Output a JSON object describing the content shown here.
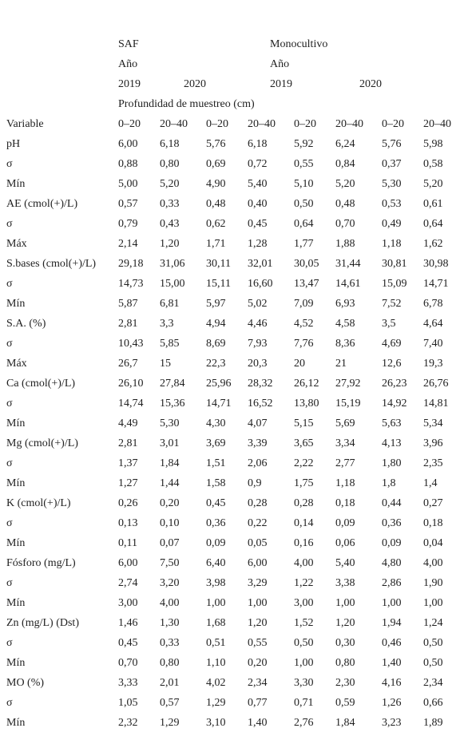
{
  "header": {
    "groups": [
      "SAF",
      "Monocultivo"
    ],
    "year_labels": [
      "Año",
      "Año"
    ],
    "years": [
      "2019",
      "2020",
      "2019",
      "2020"
    ],
    "depth_title": "Profundidad de muestreo (cm)",
    "variable_label": "Variable",
    "depths": [
      "0–20",
      "20–40",
      "0–20",
      "20–40",
      "0–20",
      "20–40",
      "0–20",
      "20–40"
    ]
  },
  "rows": [
    {
      "label": "pH",
      "values": [
        "6,00",
        "6,18",
        "5,76",
        "6,18",
        "5,92",
        "6,24",
        "5,76",
        "5,98"
      ]
    },
    {
      "label": "σ",
      "values": [
        "0,88",
        "0,80",
        "0,69",
        "0,72",
        "0,55",
        "0,84",
        "0,37",
        "0,58"
      ]
    },
    {
      "label": "Mín",
      "values": [
        "5,00",
        "5,20",
        "4,90",
        "5,40",
        "5,10",
        "5,20",
        "5,30",
        "5,20"
      ]
    },
    {
      "label": "AE (cmol(+)/L)",
      "values": [
        "0,57",
        "0,33",
        "0,48",
        "0,40",
        "0,50",
        "0,48",
        "0,53",
        "0,61"
      ]
    },
    {
      "label": "σ",
      "values": [
        "0,79",
        "0,43",
        "0,62",
        "0,45",
        "0,64",
        "0,70",
        "0,49",
        "0,64"
      ]
    },
    {
      "label": "Máx",
      "values": [
        "2,14",
        "1,20",
        "1,71",
        "1,28",
        "1,77",
        "1,88",
        "1,18",
        "1,62"
      ]
    },
    {
      "label": "S.bases (cmol(+)/L)",
      "values": [
        "29,18",
        "31,06",
        "30,11",
        "32,01",
        "30,05",
        "31,44",
        "30,81",
        "30,98"
      ]
    },
    {
      "label": "σ",
      "values": [
        "14,73",
        "15,00",
        "15,11",
        "16,60",
        "13,47",
        "14,61",
        "15,09",
        "14,71"
      ]
    },
    {
      "label": "Mín",
      "values": [
        "5,87",
        "6,81",
        "5,97",
        "5,02",
        "7,09",
        "6,93",
        "7,52",
        "6,78"
      ]
    },
    {
      "label": "S.A. (%)",
      "values": [
        "2,81",
        "3,3",
        "4,94",
        "4,46",
        "4,52",
        "4,58",
        "3,5",
        "4,64"
      ]
    },
    {
      "label": "σ",
      "values": [
        "10,43",
        "5,85",
        "8,69",
        "7,93",
        "7,76",
        "8,36",
        "4,69",
        "7,40"
      ]
    },
    {
      "label": "Máx",
      "values": [
        "26,7",
        "15",
        "22,3",
        "20,3",
        "20",
        "21",
        "12,6",
        "19,3"
      ]
    },
    {
      "label": "Ca (cmol(+)/L)",
      "values": [
        "26,10",
        "27,84",
        "25,96",
        "28,32",
        "26,12",
        "27,92",
        "26,23",
        "26,76"
      ]
    },
    {
      "label": "σ",
      "values": [
        "14,74",
        "15,36",
        "14,71",
        "16,52",
        "13,80",
        "15,19",
        "14,92",
        "14,81"
      ]
    },
    {
      "label": "Mín",
      "values": [
        "4,49",
        "5,30",
        "4,30",
        "4,07",
        "5,15",
        "5,69",
        "5,63",
        "5,34"
      ]
    },
    {
      "label": "Mg (cmol(+)/L)",
      "values": [
        "2,81",
        "3,01",
        "3,69",
        "3,39",
        "3,65",
        "3,34",
        "4,13",
        "3,96"
      ]
    },
    {
      "label": "σ",
      "values": [
        "1,37",
        "1,84",
        "1,51",
        "2,06",
        "2,22",
        "2,77",
        "1,80",
        "2,35"
      ]
    },
    {
      "label": "Mín",
      "values": [
        "1,27",
        "1,44",
        "1,58",
        "0,9",
        "1,75",
        "1,18",
        "1,8",
        "1,4"
      ]
    },
    {
      "label": "K (cmol(+)/L)",
      "values": [
        "0,26",
        "0,20",
        "0,45",
        "0,28",
        "0,28",
        "0,18",
        "0,44",
        "0,27"
      ]
    },
    {
      "label": "σ",
      "values": [
        "0,13",
        "0,10",
        "0,36",
        "0,22",
        "0,14",
        "0,09",
        "0,36",
        "0,18"
      ]
    },
    {
      "label": "Mín",
      "values": [
        "0,11",
        "0,07",
        "0,09",
        "0,05",
        "0,16",
        "0,06",
        "0,09",
        "0,04"
      ]
    },
    {
      "label": "Fósforo (mg/L)",
      "values": [
        "6,00",
        "7,50",
        "6,40",
        "6,00",
        "4,00",
        "5,40",
        "4,80",
        "4,00"
      ]
    },
    {
      "label": "σ",
      "values": [
        "2,74",
        "3,20",
        "3,98",
        "3,29",
        "1,22",
        "3,38",
        "2,86",
        "1,90"
      ]
    },
    {
      "label": "Mín",
      "values": [
        "3,00",
        "4,00",
        "1,00",
        "1,00",
        "3,00",
        "1,00",
        "1,00",
        "1,00"
      ]
    },
    {
      "label": "Zn (mg/L) (Dst)",
      "values": [
        "1,46",
        "1,30",
        "1,68",
        "1,20",
        "1,52",
        "1,20",
        "1,94",
        "1,24"
      ]
    },
    {
      "label": "σ",
      "values": [
        "0,45",
        "0,33",
        "0,51",
        "0,55",
        "0,50",
        "0,30",
        "0,46",
        "0,50"
      ]
    },
    {
      "label": "Mín",
      "values": [
        "0,70",
        "0,80",
        "1,10",
        "0,20",
        "1,00",
        "0,80",
        "1,40",
        "0,50"
      ]
    },
    {
      "label": "MO (%)",
      "values": [
        "3,33",
        "2,01",
        "4,02",
        "2,34",
        "3,30",
        "2,30",
        "4,16",
        "2,34"
      ]
    },
    {
      "label": "σ",
      "values": [
        "1,05",
        "0,57",
        "1,29",
        "0,77",
        "0,71",
        "0,59",
        "1,26",
        "0,66"
      ]
    },
    {
      "label": "Mín",
      "values": [
        "2,32",
        "1,29",
        "3,10",
        "1,40",
        "2,76",
        "1,84",
        "3,23",
        "1,89"
      ]
    }
  ]
}
